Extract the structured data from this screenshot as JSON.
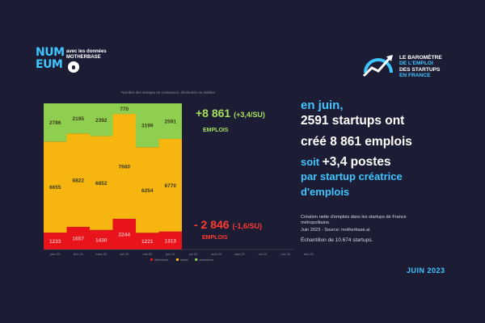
{
  "logo": {
    "letters": [
      "NUM",
      "EUM"
    ],
    "sub_line1": "avec les données",
    "sub_line2": "MOTHERBASE"
  },
  "header": {
    "line1": "LE BAROMÈTRE",
    "line2": "DE L'EMPLOI",
    "line3": "DES STARTUPS",
    "line4": "EN FRANCE"
  },
  "chart_subtitle": "Nombre des startups en croissance, diminution ou stables",
  "headline": {
    "line1": "en juin,",
    "line2": "2591 startups ont",
    "line3": "créé 8 861 emplois",
    "line4_prefix": "soit",
    "line4_value": "+3,4 postes",
    "line5": "par startup créatrice",
    "line6": "d'emplois"
  },
  "source": {
    "line1": "Création nette d'emplois dans les startups de France métropolitaine.",
    "line2": "Juin 2023 - Source: motherbase.ai"
  },
  "sample": "Échantillon de 10.674 startups.",
  "date_badge": "JUIN 2023",
  "callouts": {
    "positive_value": "+8 861",
    "positive_ratio": "(+3,4/SU)",
    "positive_unit": "EMPLOIS",
    "negative_value": "- 2 846",
    "negative_ratio": "(-1,6/SU)",
    "negative_unit": "EMPLOIS"
  },
  "colors": {
    "background": "#1c1c34",
    "croissance": "#8fcf4f",
    "stable": "#f6b50f",
    "diminution": "#e8131b",
    "accent": "#3fc6ff"
  },
  "chart_data": {
    "type": "bar",
    "stacked": true,
    "categories": [
      "janv 23",
      "févr 23",
      "mars 23",
      "avr 23",
      "mai 23",
      "juin 23",
      "juil 23",
      "août 23",
      "sept 23",
      "oct 23",
      "nov 23",
      "déc 23"
    ],
    "series": [
      {
        "name": "diminution",
        "values": [
          1233,
          1657,
          1430,
          2244,
          1221,
          1313,
          null,
          null,
          null,
          null,
          null,
          null
        ],
        "color": "#e8131b",
        "labels": [
          "1233",
          "1657",
          "1430",
          "2244",
          "1221",
          "1313",
          "",
          "",
          "",
          "",
          "",
          ""
        ]
      },
      {
        "name": "stable",
        "values": [
          6655,
          6822,
          6852,
          7660,
          6254,
          6770,
          null,
          null,
          null,
          null,
          null,
          null
        ],
        "color": "#f6b50f",
        "labels": [
          "6655",
          "6822",
          "6852",
          "7660",
          "6254",
          "6770",
          "",
          "",
          "",
          "",
          "",
          ""
        ]
      },
      {
        "name": "croissance",
        "values": [
          2786,
          2195,
          2392,
          770,
          3199,
          2591,
          null,
          null,
          null,
          null,
          null,
          null
        ],
        "color": "#8fcf4f",
        "labels": [
          "2786",
          "2195",
          "2392",
          "770",
          "3199",
          "2591",
          "",
          "",
          "",
          "",
          "",
          ""
        ]
      }
    ],
    "legend": [
      "diminution",
      "stable",
      "croissance"
    ],
    "legend_position": "bottom",
    "grid": false
  }
}
